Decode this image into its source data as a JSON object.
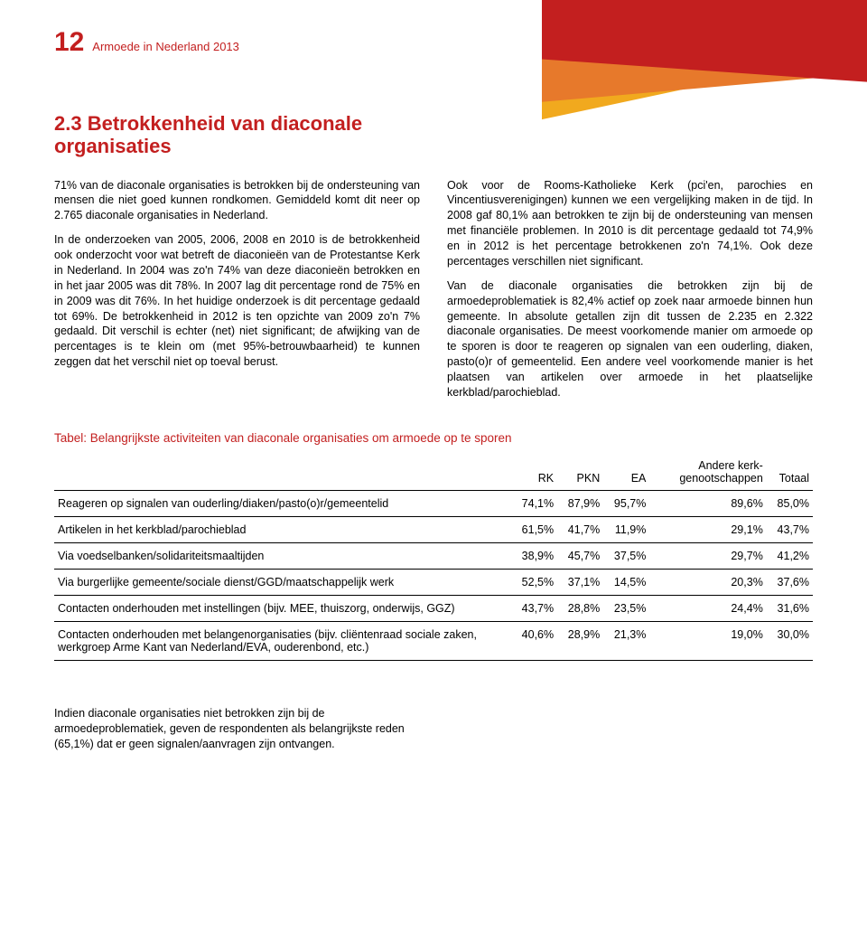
{
  "page": {
    "number": "12",
    "running_title": "Armoede in Nederland 2013"
  },
  "section": {
    "title": "2.3 Betrokkenheid van diaconale organisaties"
  },
  "body": {
    "left": {
      "p1": "71% van de diaconale organisaties is betrokken bij de ondersteuning van mensen die niet goed kunnen rondkomen. Gemiddeld komt dit neer op 2.765 diaconale organisaties in Nederland.",
      "p2": "In de onderzoeken van 2005, 2006, 2008 en 2010 is de betrokkenheid ook onderzocht voor wat betreft de diaconieën van de Protestantse Kerk in Nederland. In 2004 was zo'n 74% van deze diaconieën betrokken en in het jaar 2005 was dit 78%. In 2007 lag dit percentage rond de 75% en in 2009 was dit 76%. In het huidige onderzoek is dit percentage gedaald tot 69%. De betrokkenheid in 2012 is ten opzichte van 2009 zo'n 7% gedaald. Dit verschil is echter (net) niet significant; de afwijking van de percentages is te klein om (met 95%-betrouwbaarheid) te kunnen zeggen dat het verschil niet op toeval berust."
    },
    "right": {
      "p1": "Ook voor de Rooms-Katholieke Kerk (pci'en, parochies en Vincentiusverenigingen) kunnen we een vergelijking maken in de tijd. In 2008 gaf 80,1% aan betrokken te zijn bij de ondersteuning van mensen met financiële problemen. In 2010 is dit percentage gedaald tot 74,9% en in 2012 is het percentage betrokkenen zo'n 74,1%. Ook deze percentages verschillen niet significant.",
      "p2": "Van de diaconale organisaties die betrokken zijn bij de armoedeproblematiek is 82,4% actief op zoek naar armoede binnen hun gemeente. In absolute getallen zijn dit tussen de 2.235 en 2.322 diaconale organisaties. De meest voorkomende manier om armoede op te sporen is door te reageren op signalen van een ouderling, diaken, pasto(o)r of gemeentelid. Een andere veel voorkomende manier is het plaatsen van artikelen over armoede in het plaatselijke kerkblad/parochieblad."
    }
  },
  "table": {
    "title": "Tabel: Belangrijkste activiteiten van diaconale organisaties om armoede op te sporen",
    "columns": [
      "",
      "RK",
      "PKN",
      "EA",
      "Andere kerk-\ngenootschappen",
      "Totaal"
    ],
    "rows": [
      [
        "Reageren op signalen van ouderling/diaken/pasto(o)r/gemeentelid",
        "74,1%",
        "87,9%",
        "95,7%",
        "89,6%",
        "85,0%"
      ],
      [
        "Artikelen in het kerkblad/parochieblad",
        "61,5%",
        "41,7%",
        "11,9%",
        "29,1%",
        "43,7%"
      ],
      [
        "Via voedselbanken/solidariteitsmaaltijden",
        "38,9%",
        "45,7%",
        "37,5%",
        "29,7%",
        "41,2%"
      ],
      [
        "Via burgerlijke gemeente/sociale dienst/GGD/maatschappelijk werk",
        "52,5%",
        "37,1%",
        "14,5%",
        "20,3%",
        "37,6%"
      ],
      [
        "Contacten onderhouden met instellingen (bijv. MEE, thuiszorg, onderwijs, GGZ)",
        "43,7%",
        "28,8%",
        "23,5%",
        "24,4%",
        "31,6%"
      ],
      [
        "Contacten onderhouden met belangenorganisaties (bijv. cliëntenraad sociale zaken, werkgroep Arme Kant van Nederland/EVA, ouderenbond, etc.)",
        "40,6%",
        "28,9%",
        "21,3%",
        "19,0%",
        "30,0%"
      ]
    ]
  },
  "footer": {
    "text": "Indien diaconale organisaties niet betrokken zijn bij de armoedeproblematiek, geven de respondenten als belangrijkste reden (65,1%) dat er geen signalen/aanvragen zijn ontvangen."
  },
  "colors": {
    "accent": "#c31f1f",
    "corner_yellow": "#f1a91e",
    "corner_orange": "#e7792b",
    "corner_red": "#c31f1f",
    "text": "#000000",
    "background": "#ffffff"
  }
}
